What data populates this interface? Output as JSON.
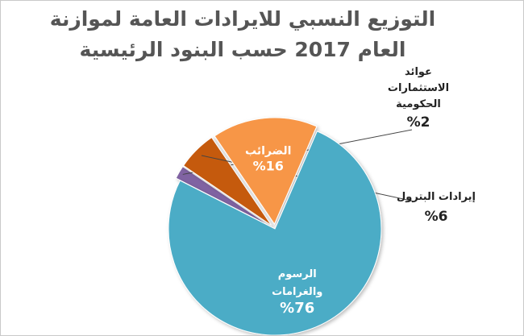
{
  "title_lines": [
    "التوزيع النسبي للايرادات العامة لموازنة",
    "العام 2017 حسب البنود الرئيسية"
  ],
  "chart_data": {
    "type": "pie",
    "title": "التوزيع النسبي للايرادات العامة لموازنة العام 2017 حسب البنود الرئيسية",
    "slices": [
      {
        "label_lines": [
          "عوائد",
          "الاستثمارات",
          "الحكومية"
        ],
        "value_text": "%2",
        "value": 2,
        "color": "#8064a2",
        "label_placement": "outside"
      },
      {
        "label_lines": [
          "إيرادات البترول"
        ],
        "value_text": "%6",
        "value": 6,
        "color": "#c55a11",
        "label_placement": "outside"
      },
      {
        "label_lines": [
          "الضرائب"
        ],
        "value_text": "%16",
        "value": 16,
        "color": "#f79646",
        "label_placement": "inside"
      },
      {
        "label_lines": [
          "الرسوم",
          "والغرامات"
        ],
        "value_text": "%76",
        "value": 76,
        "color": "#4bacc6",
        "label_placement": "inside"
      }
    ],
    "exploded_slices": [
      "%2",
      "%6",
      "%16"
    ],
    "legend": "none",
    "label_color": "#ffffff",
    "outside_label_color": "#222222"
  }
}
